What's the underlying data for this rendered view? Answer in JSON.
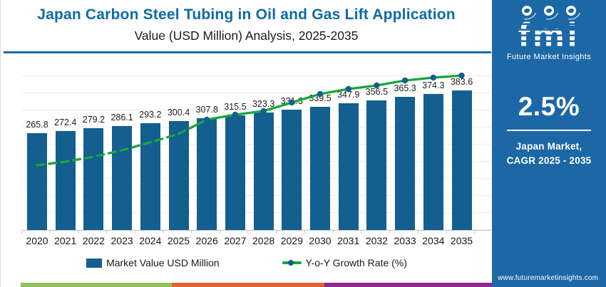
{
  "header": {
    "title": "Japan Carbon Steel Tubing in Oil and Gas Lift Application",
    "subtitle": "Value (USD Million) Analysis, 2025-2035"
  },
  "chart_data": {
    "type": "bar",
    "title": "Japan Carbon Steel Tubing in Oil and Gas Lift Application — Value (USD Million), 2025-2035",
    "categories": [
      "2020",
      "2021",
      "2022",
      "2023",
      "2024",
      "2025",
      "2026",
      "2027",
      "2028",
      "2029",
      "2030",
      "2031",
      "2032",
      "2033",
      "2034",
      "2035"
    ],
    "series": [
      {
        "name": "Market Value USD Million",
        "type": "bar",
        "color": "#135F90",
        "values": [
          265.8,
          272.4,
          279.2,
          286.1,
          293.2,
          300.4,
          307.8,
          315.5,
          323.3,
          331.3,
          339.5,
          347.9,
          356.5,
          365.3,
          374.3,
          383.6
        ]
      },
      {
        "name": "Y-o-Y Growth Rate (%)",
        "type": "line",
        "color": "#18A63C",
        "style": "dashed 2020-2025, solid with markers 2026-2035",
        "line_height_fraction": [
          0.383,
          0.404,
          0.433,
          0.471,
          0.517,
          0.567,
          0.65,
          0.679,
          0.7,
          0.75,
          0.8,
          0.829,
          0.85,
          0.879,
          0.896,
          0.908
        ]
      }
    ],
    "xlabel": "",
    "ylabel": "",
    "ylim": [
      0,
      470
    ],
    "grid": "horizontal-light",
    "legend_position": "bottom",
    "y_axis_ticks_visible": false,
    "data_labels": "above each bar"
  },
  "sidebar": {
    "logo": {
      "brand": "fmi",
      "tagline": "Future Market Insights"
    },
    "stat_value": "2.5%",
    "caption_line1": "Japan Market,",
    "caption_line2": "CAGR 2025 - 2035",
    "website": "www.futuremarketinsights.com",
    "bg_color": "#1C68A6"
  },
  "colors": {
    "title": "#0E6BA8",
    "accent_rule": "#1B6CA8",
    "bar": "#135F90",
    "line": "#18A63C"
  },
  "footer_stripe_colors": [
    "#95C05C",
    "#E4632B",
    "#92278F"
  ]
}
